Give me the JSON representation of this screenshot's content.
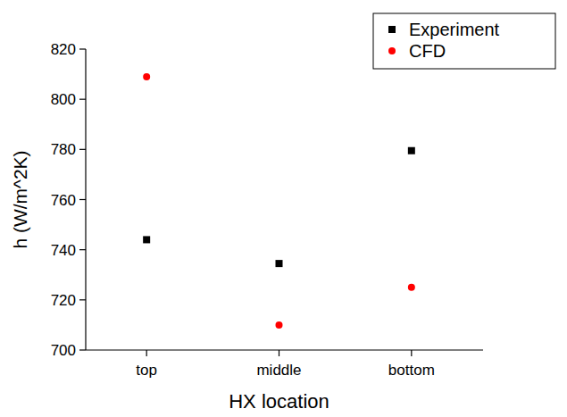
{
  "chart_data": {
    "type": "scatter",
    "categories": [
      "top",
      "middle",
      "bottom"
    ],
    "x_label": "HX location",
    "y_label": "h (W/m^2K)",
    "series": [
      {
        "name": "Experiment",
        "color": "#000000",
        "marker": "square",
        "values": [
          744,
          734.5,
          779.5
        ]
      },
      {
        "name": "CFD",
        "color": "#ff0000",
        "marker": "circle",
        "values": [
          809,
          710,
          725
        ]
      }
    ],
    "ylim": [
      700,
      820
    ],
    "yticks": [
      700,
      720,
      740,
      760,
      780,
      800,
      820
    ],
    "legend": "top-right"
  }
}
